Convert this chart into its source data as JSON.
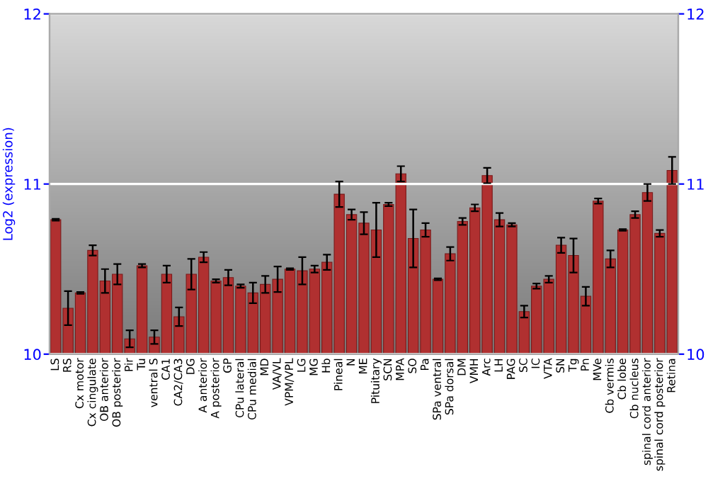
{
  "chart_data": {
    "type": "bar",
    "ylabel": "Log2 (expression)",
    "categories": [
      "LS",
      "RS",
      "Cx motor",
      "Cx cingulate",
      "OB anterior",
      "OB posterior",
      "Pir",
      "Tu",
      "ventral S",
      "CA1",
      "CA2/CA3",
      "DG",
      "A anterior",
      "A posterior",
      "GP",
      "CPu lateral",
      "CPu medial",
      "MD",
      "VA/VL",
      "VPM/VPL",
      "LG",
      "MG",
      "Hb",
      "Pineal",
      "N",
      "ME",
      "Pituitary",
      "SCN",
      "MPA",
      "SO",
      "Pa",
      "SPa ventral",
      "SPa dorsal",
      "DM",
      "VMH",
      "Arc",
      "LH",
      "PAG",
      "SC",
      "IC",
      "VTA",
      "SN",
      "Tg",
      "Pn",
      "MVe",
      "Cb vermis",
      "Cb lobe",
      "Cb nucleus",
      "spinal cord anterior",
      "spinal cord posterior",
      "Retina"
    ],
    "values": [
      10.79,
      10.27,
      10.36,
      10.61,
      10.43,
      10.47,
      10.09,
      10.52,
      10.1,
      10.47,
      10.22,
      10.47,
      10.57,
      10.43,
      10.45,
      10.4,
      10.36,
      10.41,
      10.44,
      10.5,
      10.49,
      10.5,
      10.54,
      10.94,
      10.82,
      10.77,
      10.73,
      10.88,
      11.06,
      10.68,
      10.73,
      10.44,
      10.59,
      10.78,
      10.86,
      11.05,
      10.79,
      10.76,
      10.25,
      10.4,
      10.44,
      10.64,
      10.58,
      10.34,
      10.9,
      10.56,
      10.73,
      10.82,
      10.95,
      10.71,
      11.08
    ],
    "errors": [
      0.005,
      0.1,
      0.005,
      0.03,
      0.07,
      0.06,
      0.05,
      0.01,
      0.04,
      0.05,
      0.055,
      0.09,
      0.03,
      0.01,
      0.045,
      0.01,
      0.06,
      0.05,
      0.075,
      0.005,
      0.08,
      0.02,
      0.045,
      0.075,
      0.03,
      0.065,
      0.16,
      0.01,
      0.045,
      0.17,
      0.04,
      0.005,
      0.04,
      0.02,
      0.02,
      0.045,
      0.04,
      0.01,
      0.035,
      0.015,
      0.02,
      0.045,
      0.1,
      0.055,
      0.015,
      0.05,
      0.005,
      0.02,
      0.05,
      0.02,
      0.08
    ],
    "color": "#b03030",
    "ylim": [
      10,
      12
    ],
    "yticks": [
      10,
      11,
      12
    ],
    "y2lim": [
      10,
      12
    ],
    "y2ticks": [
      10,
      11,
      12
    ],
    "grid": "y"
  }
}
